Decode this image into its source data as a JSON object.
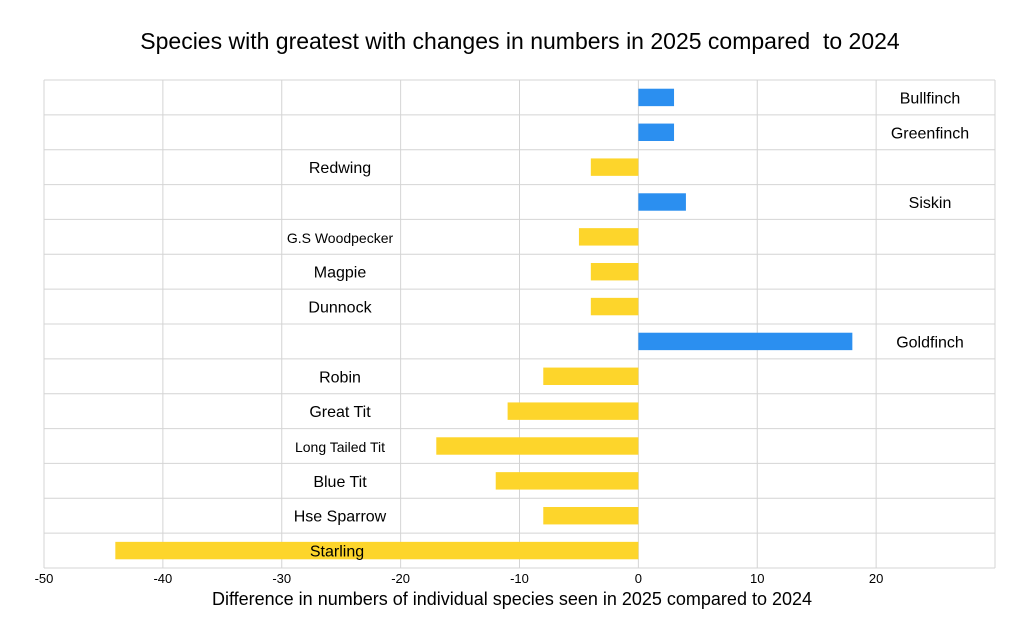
{
  "chart_data": {
    "type": "bar",
    "orientation": "horizontal",
    "title": "Species with greatest with changes in numbers in 2025 compared  to 2024",
    "xlabel": "Difference in numbers of individual species seen in 2025 compared to 2024",
    "ylabel": "",
    "xlim": [
      -50,
      30
    ],
    "xticks": [
      -50,
      -40,
      -30,
      -20,
      -10,
      0,
      10,
      20
    ],
    "grid": true,
    "legend": "none",
    "colors": {
      "increase": "#2b8ff0",
      "decrease": "#fdd52b"
    },
    "categories": [
      "Bullfinch",
      "Greenfinch",
      "Redwing",
      "Siskin",
      "G.S Woodpecker",
      "Magpie",
      "Dunnock",
      "Goldfinch",
      "Robin",
      "Great Tit",
      "Long Tailed Tit",
      "Blue Tit",
      "Hse Sparrow",
      "Starling"
    ],
    "values": [
      3,
      3,
      -4,
      4,
      -5,
      -4,
      -4,
      18,
      -8,
      -11,
      -17,
      -12,
      -8,
      -44
    ]
  }
}
